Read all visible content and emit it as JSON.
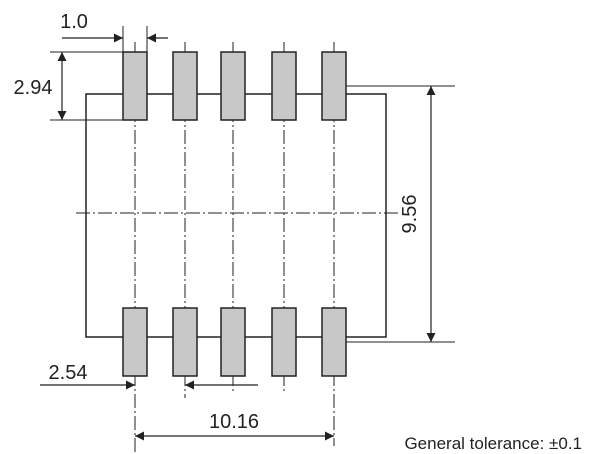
{
  "dimensions": {
    "pad_width": "1.0",
    "pad_height": "2.94",
    "row_spacing": "9.56",
    "pitch": "2.54",
    "total_span": "10.16"
  },
  "note": "General tolerance: ±0.1",
  "colors": {
    "pad_fill": "#c8c8c8",
    "line": "#222222",
    "background": "#ffffff"
  },
  "pads": {
    "columns": 5,
    "rows": 2
  }
}
